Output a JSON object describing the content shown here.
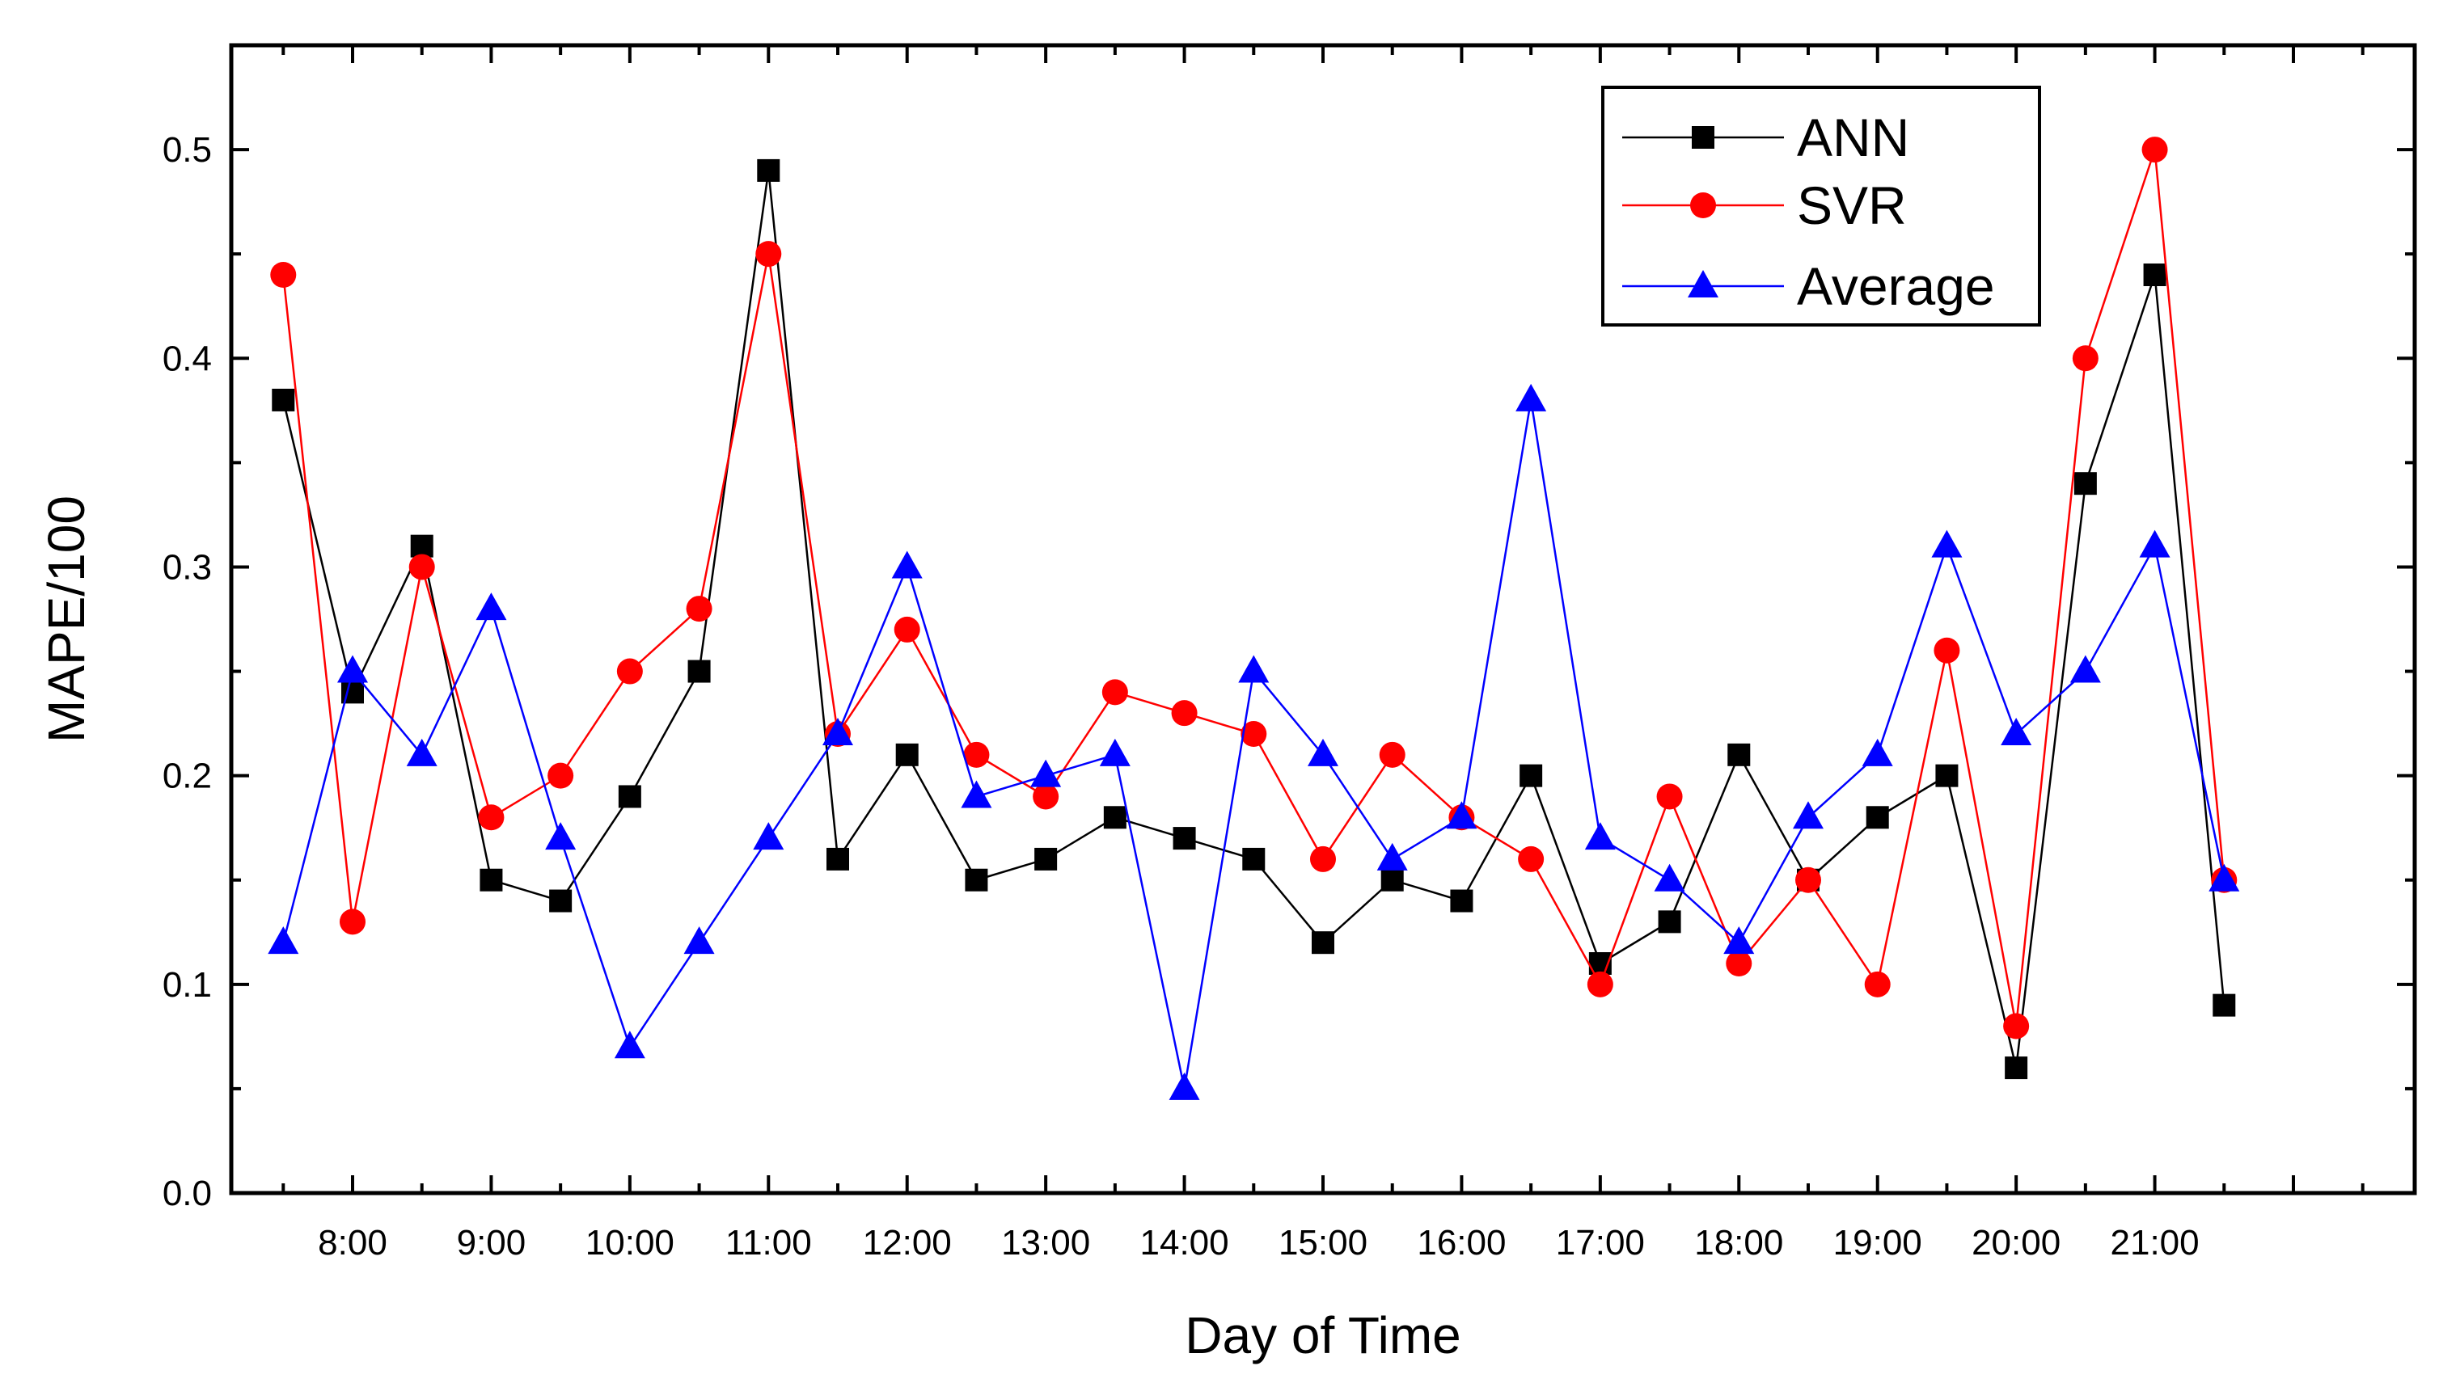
{
  "chart_data": {
    "type": "line",
    "title": "",
    "xlabel": "Day of Time",
    "ylabel": "MAPE/100",
    "ylim": [
      0.0,
      0.55
    ],
    "xlim": [
      7.125,
      22.875
    ],
    "yticks": [
      0.0,
      0.1,
      0.2,
      0.3,
      0.4,
      0.5
    ],
    "ytick_labels": [
      "0.0",
      "0.1",
      "0.2",
      "0.3",
      "0.4",
      "0.5"
    ],
    "xticks": [
      8,
      9,
      10,
      11,
      12,
      13,
      14,
      15,
      16,
      17,
      18,
      19,
      20,
      21
    ],
    "xtick_labels": [
      "8:00",
      "9:00",
      "10:00",
      "11:00",
      "12:00",
      "13:00",
      "14:00",
      "15:00",
      "16:00",
      "17:00",
      "18:00",
      "19:00",
      "20:00",
      "21:00"
    ],
    "x": [
      7.5,
      8.0,
      8.5,
      9.0,
      9.5,
      10.0,
      10.5,
      11.0,
      11.5,
      12.0,
      12.5,
      13.0,
      13.5,
      14.0,
      14.5,
      15.0,
      15.5,
      16.0,
      16.5,
      17.0,
      17.5,
      18.0,
      18.5,
      19.0,
      19.5,
      20.0,
      20.5,
      21.0,
      21.5
    ],
    "series": [
      {
        "name": "ANN",
        "color": "#000000",
        "marker": "square",
        "values": [
          0.38,
          0.24,
          0.31,
          0.15,
          0.14,
          0.19,
          0.25,
          0.49,
          0.16,
          0.21,
          0.15,
          0.16,
          0.18,
          0.17,
          0.16,
          0.12,
          0.15,
          0.14,
          0.2,
          0.11,
          0.13,
          0.21,
          0.15,
          0.18,
          0.2,
          0.06,
          0.34,
          0.44,
          0.09
        ]
      },
      {
        "name": "SVR",
        "color": "#ff0000",
        "marker": "circle",
        "values": [
          0.44,
          0.13,
          0.3,
          0.18,
          0.2,
          0.25,
          0.28,
          0.45,
          0.22,
          0.27,
          0.21,
          0.19,
          0.24,
          0.23,
          0.22,
          0.16,
          0.21,
          0.18,
          0.16,
          0.1,
          0.19,
          0.11,
          0.15,
          0.1,
          0.26,
          0.08,
          0.4,
          0.5,
          0.15
        ]
      },
      {
        "name": "Average",
        "color": "#0000ff",
        "marker": "triangle",
        "values": [
          0.12,
          0.25,
          0.21,
          0.28,
          0.17,
          0.07,
          0.12,
          0.17,
          0.22,
          0.3,
          0.19,
          0.2,
          0.21,
          0.05,
          0.25,
          0.21,
          0.16,
          0.18,
          0.38,
          0.17,
          0.15,
          0.12,
          0.18,
          0.21,
          0.31,
          0.22,
          0.25,
          0.31,
          0.15
        ]
      }
    ],
    "legend_position": "top-right",
    "grid": false
  }
}
